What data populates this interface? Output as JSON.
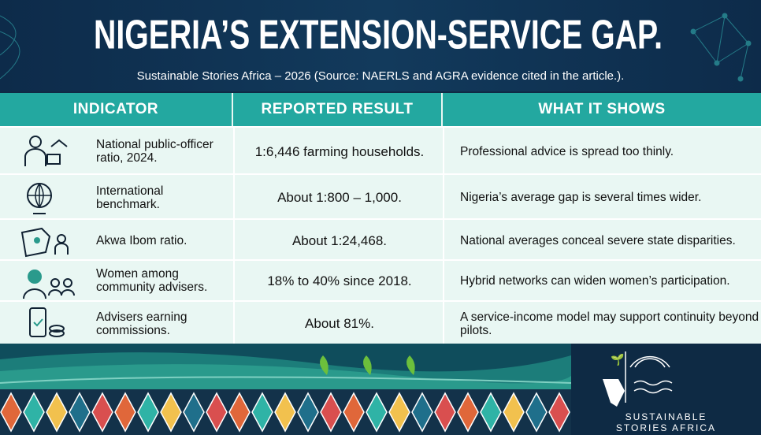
{
  "header": {
    "title": "NIGERIA’S EXTENSION-SERVICE GAP.",
    "subtitle": "Sustainable Stories Africa – 2026 (Source: NAERLS and AGRA evidence cited in the article.)."
  },
  "table": {
    "columns": [
      "INDICATOR",
      "REPORTED RESULT",
      "WHAT IT SHOWS"
    ],
    "rows": [
      [
        "National public-officer ratio, 2024.",
        "1:6,446 farming households.",
        "Professional advice is spread too thinly."
      ],
      [
        "International benchmark.",
        "About 1:800 – 1,000.",
        "Nigeria’s average gap is several times wider."
      ],
      [
        "Akwa Ibom ratio.",
        "About 1:24,468.",
        "National averages conceal severe state disparities."
      ],
      [
        "Women among community advisers.",
        "18% to 40% since 2018.",
        "Hybrid networks can widen women’s participation."
      ],
      [
        "Advisers earning commissions.",
        "About 81%.",
        "A service-income model may support continuity beyond pilots."
      ]
    ]
  },
  "footer": {
    "brand_line1": "SUSTAINABLE",
    "brand_line2": "STORIES AFRICA"
  }
}
